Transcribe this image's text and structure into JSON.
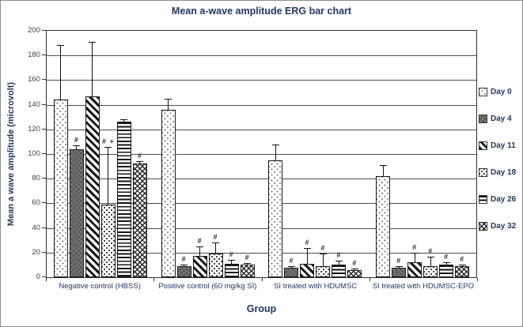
{
  "title": "Mean a-wave amplitude ERG bar chart",
  "axes": {
    "y_title": "Mean a wave amplitude (microvolt)",
    "x_title": "Group"
  },
  "colors": {
    "text_navy": "#1f3864",
    "tick_text": "#3f3f46",
    "grid": "#4d4d4d",
    "bar_border": "#1a1a1a"
  },
  "chart_data": {
    "type": "bar",
    "title": "Mean a-wave amplitude ERG bar chart",
    "xlabel": "Group",
    "ylabel": "Mean a wave amplitude (microvolt)",
    "ylim": [
      0,
      200
    ],
    "yticks": [
      0,
      20,
      40,
      60,
      80,
      100,
      120,
      140,
      160,
      180,
      200
    ],
    "grid": true,
    "legend_position": "right",
    "categories": [
      "Negative control (HBSS)",
      "Positive control (60 mg/kg SI)",
      "SI treated with HDUMSC",
      "SI treated with HDUMSC-EPO"
    ],
    "series": [
      {
        "name": "Day 0",
        "pattern": "dots-sparse",
        "values": [
          144,
          136,
          95,
          82
        ],
        "errors_upper": [
          44,
          9,
          13,
          9
        ],
        "annotations": [
          "",
          "",
          "",
          ""
        ]
      },
      {
        "name": "Day 4",
        "pattern": "checker-dark",
        "values": [
          104,
          9,
          8,
          8
        ],
        "errors_upper": [
          3,
          1.5,
          1,
          1.5
        ],
        "annotations": [
          "#",
          "#",
          "#",
          "#"
        ]
      },
      {
        "name": "Day 11",
        "pattern": "diag-stripes",
        "values": [
          147,
          17,
          11,
          12
        ],
        "errors_upper": [
          44,
          8,
          13,
          8
        ],
        "annotations": [
          "",
          "#",
          "#",
          "#"
        ]
      },
      {
        "name": "Day 18",
        "pattern": "dots-dense",
        "values": [
          59,
          19,
          9,
          9
        ],
        "errors_upper": [
          47,
          9,
          10,
          8
        ],
        "annotations": [
          "# +",
          "#",
          "#",
          "#"
        ]
      },
      {
        "name": "Day 26",
        "pattern": "hlines",
        "values": [
          126,
          11,
          10,
          10
        ],
        "errors_upper": [
          2,
          3,
          3,
          2
        ],
        "annotations": [
          "",
          "#",
          "#",
          "#"
        ]
      },
      {
        "name": "Day 32",
        "pattern": "crosshatch",
        "values": [
          92,
          10,
          6,
          9
        ],
        "errors_upper": [
          2,
          1,
          1,
          1
        ],
        "annotations": [
          "#",
          "#",
          "#",
          "#"
        ]
      }
    ]
  }
}
